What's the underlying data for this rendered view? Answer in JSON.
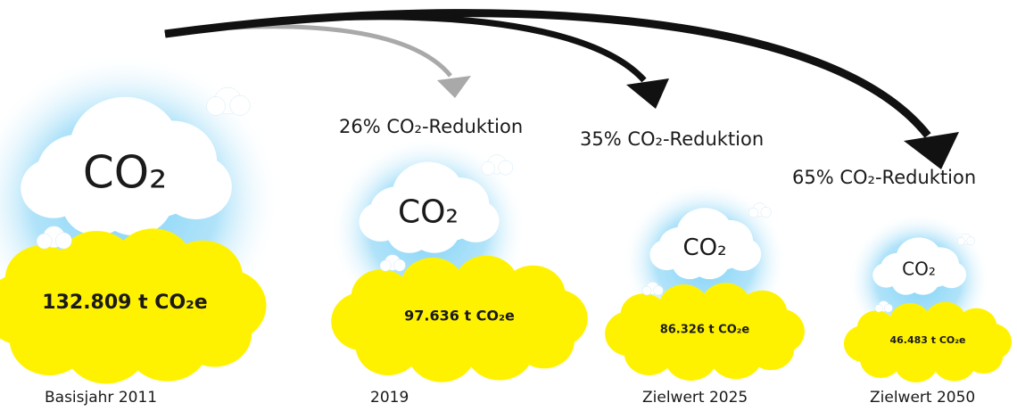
{
  "items": [
    {
      "cloud": "CO₂",
      "amount": "132.809 t CO₂e",
      "label": "Basisjahr 2011"
    },
    {
      "reduction": "26% CO₂-Reduktion",
      "cloud": "CO₂",
      "amount": "97.636 t CO₂e",
      "label": "2019"
    },
    {
      "reduction": "35% CO₂-Reduktion",
      "cloud": "CO₂",
      "amount": "86.326 t CO₂e",
      "label": "Zielwert 2025"
    },
    {
      "reduction": "65% CO₂-Reduktion",
      "cloud": "CO₂",
      "amount": "46.483 t CO₂e",
      "label": "Zielwert 2050"
    }
  ]
}
